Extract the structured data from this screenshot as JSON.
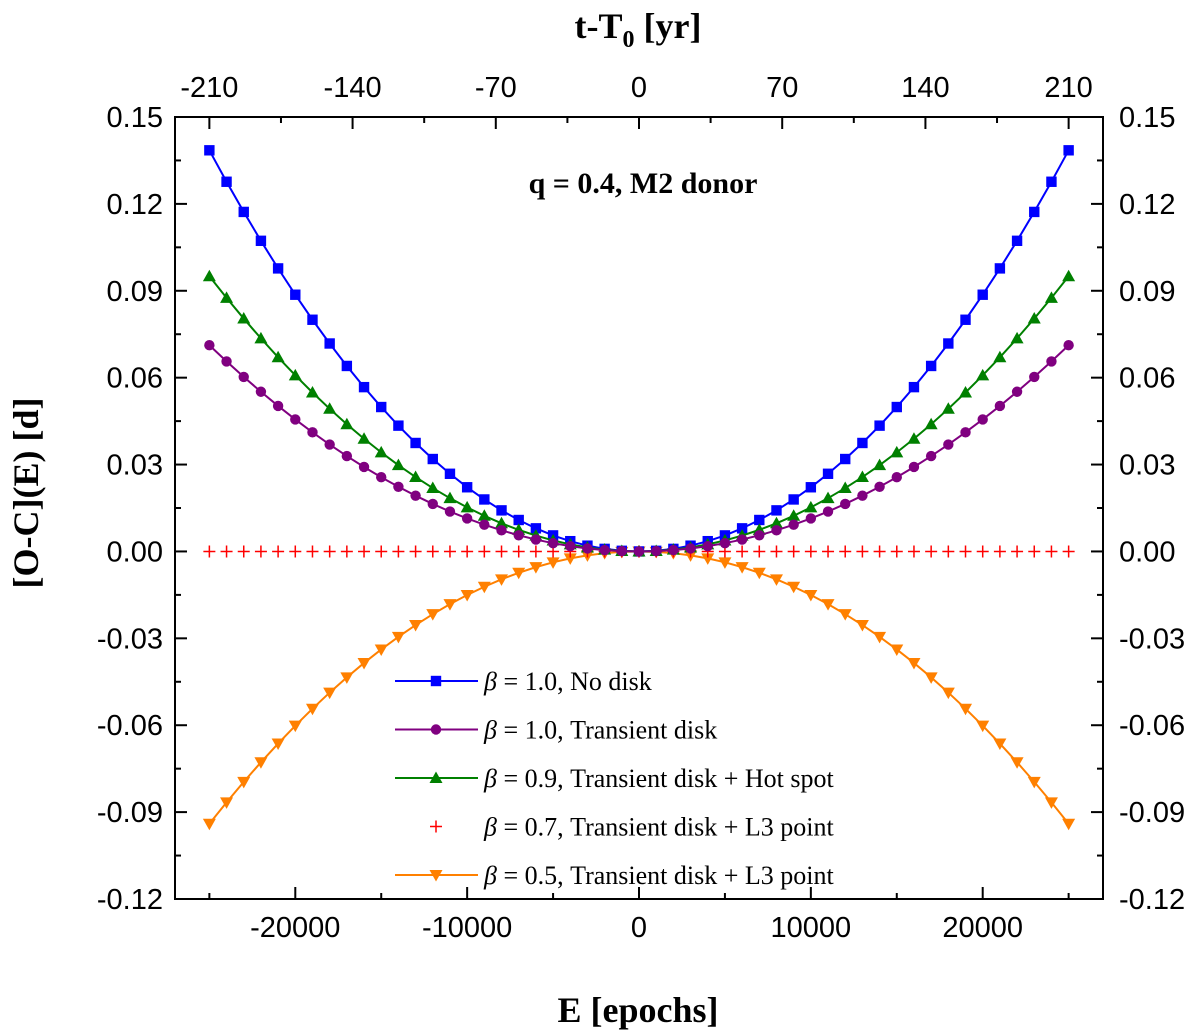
{
  "chart_data": {
    "type": "line",
    "annotation": "q = 0.4, M2 donor",
    "xlabel": "E [epochs]",
    "ylabel": "[O-C](E) [d]",
    "top_xlabel_main": "t-T",
    "top_xlabel_sub": "0",
    "top_xlabel_unit": " [yr]",
    "xlim": [
      -27000,
      27000
    ],
    "ylim": [
      -0.12,
      0.15
    ],
    "x_ticks": [
      -20000,
      -10000,
      0,
      10000,
      20000
    ],
    "x_tick_labels": [
      "-20000",
      "-10000",
      "0",
      "10000",
      "20000"
    ],
    "top_ticks": [
      -210,
      -140,
      -70,
      0,
      70,
      140,
      210
    ],
    "top_tick_labels": [
      "-210",
      "-140",
      "-70",
      "0",
      "70",
      "140",
      "210"
    ],
    "top_ticks_epochs": [
      -25000,
      -16667,
      -8333,
      0,
      8333,
      16667,
      25000
    ],
    "y_ticks": [
      -0.12,
      -0.09,
      -0.06,
      -0.03,
      0.0,
      0.03,
      0.06,
      0.09,
      0.12,
      0.15
    ],
    "y_tick_labels": [
      "-0.12",
      "-0.09",
      "-0.06",
      "-0.03",
      "0.00",
      "0.03",
      "0.06",
      "0.09",
      "0.12",
      "0.15"
    ],
    "y_tick_labels_right": [
      "-0.12",
      "-0.09",
      "-0.06",
      "-0.03",
      "0.00",
      "0.03",
      "0.06",
      "0.09",
      "0.12",
      "0.15"
    ],
    "x_sample": {
      "start": -25000,
      "stop": 25000,
      "step": 1000
    },
    "series": [
      {
        "beta": "β",
        "name": " = 1.0, No disk",
        "color": "#0000ff",
        "marker": "square",
        "curvature": 0.1385
      },
      {
        "beta": "β",
        "name": " = 1.0, Transient disk",
        "color": "#800080",
        "marker": "circle",
        "curvature": 0.0712
      },
      {
        "beta": "β",
        "name": " = 0.9, Transient disk + Hot spot",
        "color": "#008000",
        "marker": "triangle-up",
        "curvature": 0.095
      },
      {
        "beta": "β",
        "name": " = 0.7, Transient disk + L3 point",
        "color": "#ff0000",
        "marker": "plus",
        "curvature": 0.0,
        "no_line": true
      },
      {
        "beta": "β",
        "name": " = 0.5, Transient disk + L3 point",
        "color": "#ff8000",
        "marker": "triangle-down",
        "curvature": -0.094
      }
    ],
    "series_note": "Each series follows O-C = curvature * (E / 25000)^2, sampled every 1000 epochs."
  }
}
